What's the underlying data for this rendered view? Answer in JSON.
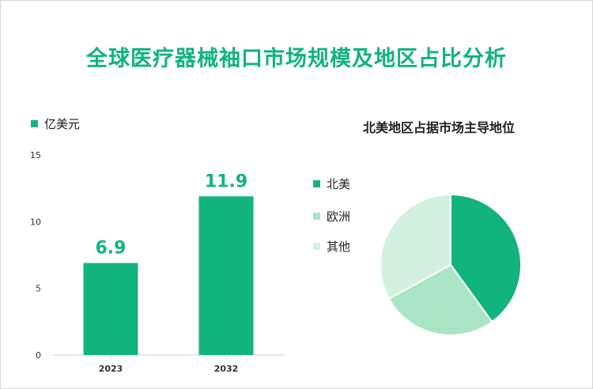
{
  "title": "全球医疗器械袖口市场规模及地区占比分析",
  "colors": {
    "title": "#10b47c",
    "bar": "#12b47e",
    "north_america": "#12b47e",
    "europe": "#a9e4c4",
    "other": "#d3f1e0"
  },
  "chart_data": [
    {
      "type": "bar",
      "legend": "亿美元",
      "categories": [
        "2023",
        "2032"
      ],
      "values": [
        6.9,
        11.9
      ],
      "data_labels": [
        "6.9",
        "11.9"
      ],
      "ylim": [
        0,
        15
      ],
      "yticks": [
        "0",
        "5",
        "10",
        "15"
      ],
      "grid": false
    },
    {
      "type": "pie",
      "title": "北美地区占据市场主导地位",
      "labels": [
        "北美",
        "欧洲",
        "其他"
      ],
      "values": [
        40,
        27,
        33
      ],
      "legend_position": "left"
    }
  ]
}
